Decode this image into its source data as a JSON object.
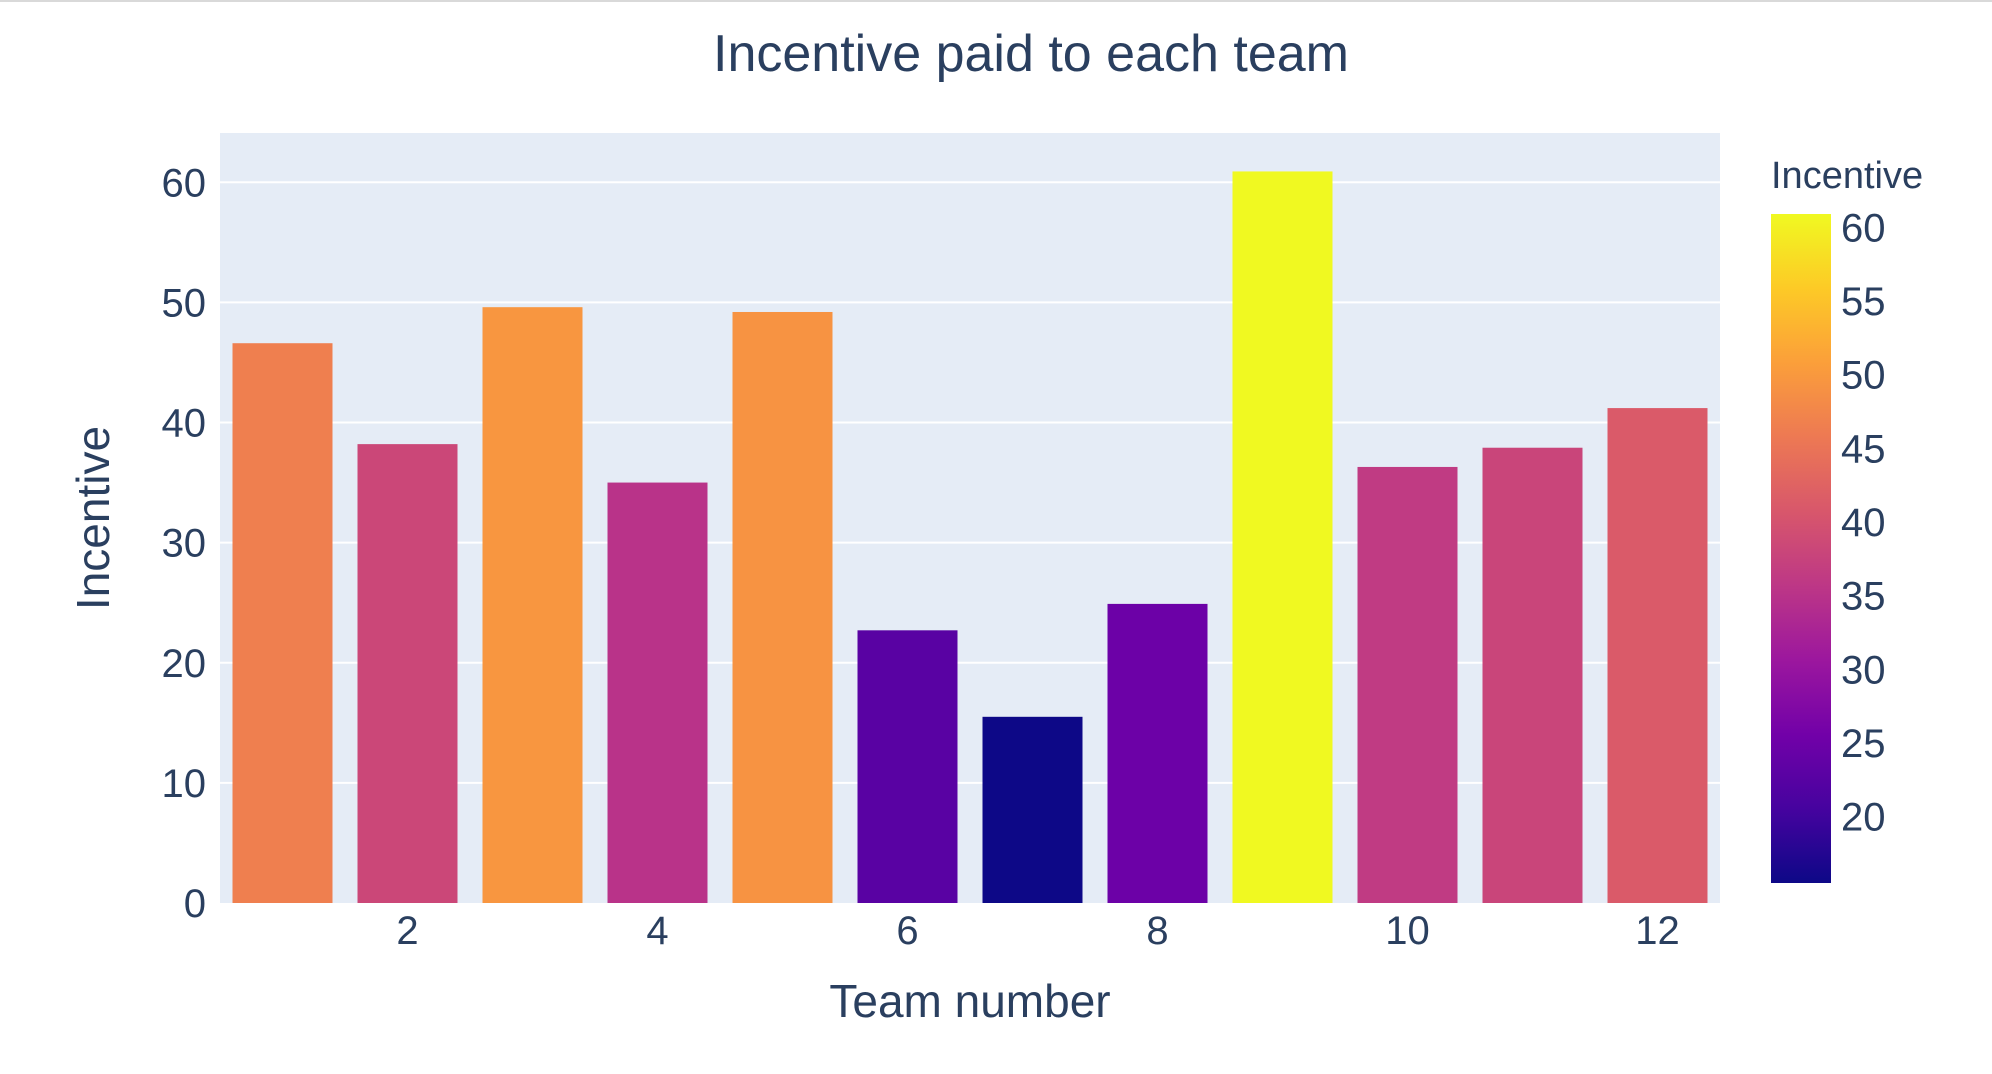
{
  "chart_data": {
    "type": "bar",
    "title": "Incentive paid to each team",
    "xlabel": "Team number",
    "ylabel": "Incentive",
    "x": [
      1,
      2,
      3,
      4,
      5,
      6,
      7,
      8,
      9,
      10,
      11,
      12
    ],
    "values": [
      46.6,
      38.2,
      49.6,
      35.0,
      49.2,
      22.7,
      15.5,
      24.9,
      60.9,
      36.3,
      37.9,
      41.2
    ],
    "x_ticks": [
      2,
      4,
      6,
      8,
      10,
      12
    ],
    "y_ticks": [
      0,
      10,
      20,
      30,
      40,
      50,
      60
    ],
    "ylim": [
      0,
      64.1
    ],
    "xlim": [
      0.5,
      12.5
    ],
    "grid": true,
    "colorbar": {
      "title": "Incentive",
      "range": [
        15.5,
        60.9
      ],
      "ticks": [
        20,
        25,
        30,
        35,
        40,
        45,
        50,
        55,
        60
      ],
      "colorscale": "Plasma",
      "colors": [
        "#0d0887",
        "#46039f",
        "#7201a8",
        "#9c179e",
        "#bd3786",
        "#d8576b",
        "#ed7953",
        "#fb9f3a",
        "#fdca26",
        "#f0f921"
      ]
    },
    "background_color": "#e5ecf6",
    "gridline_color": "#ffffff",
    "text_color": "#2a3f5f"
  }
}
